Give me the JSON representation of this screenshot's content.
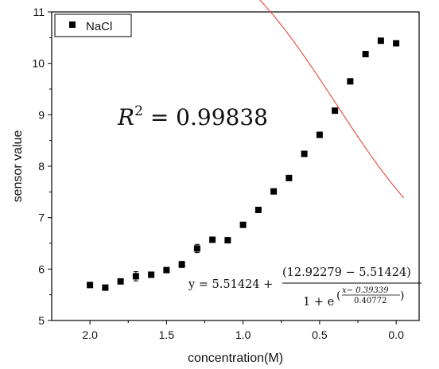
{
  "chart_data": {
    "type": "scatter",
    "xlabel": "concentration(M)",
    "ylabel": "sensor value",
    "xlim": [
      2.25,
      -0.15
    ],
    "ylim": [
      5,
      11
    ],
    "x_reversed": true,
    "xticks": [
      "2.0",
      "1.5",
      "1.0",
      "0.5",
      "0.0"
    ],
    "xtick_values": [
      2.0,
      1.5,
      1.0,
      0.5,
      0.0
    ],
    "yticks": [
      "5",
      "6",
      "7",
      "8",
      "9",
      "10",
      "11"
    ],
    "ytick_values": [
      5,
      6,
      7,
      8,
      9,
      10,
      11
    ],
    "grid": false,
    "legend_position": "top-left",
    "series": [
      {
        "name": "NaCl",
        "marker": "square",
        "color": "#000000",
        "x": [
          2.0,
          1.9,
          1.8,
          1.7,
          1.6,
          1.5,
          1.4,
          1.3,
          1.2,
          1.1,
          1.0,
          0.9,
          0.8,
          0.7,
          0.6,
          0.5,
          0.4,
          0.3,
          0.2,
          0.1,
          0.0
        ],
        "y": [
          5.69,
          5.64,
          5.76,
          5.86,
          5.89,
          5.98,
          6.09,
          6.4,
          6.57,
          6.56,
          6.86,
          7.15,
          7.51,
          7.77,
          8.24,
          8.61,
          9.08,
          9.65,
          10.18,
          10.44,
          10.39
        ],
        "error": [
          0.02,
          0.02,
          0.03,
          0.09,
          0.05,
          0.03,
          0.06,
          0.08,
          0.03,
          0.03,
          0.03,
          0.03,
          0.03,
          0.03,
          0.03,
          0.03,
          0.03,
          0.03,
          0.03,
          0.03,
          0.03
        ]
      }
    ],
    "fit": {
      "color": "#e8534f",
      "A1": 5.51424,
      "A2": 12.92279,
      "x0": 0.39339,
      "dx": 0.40772,
      "range": [
        2.0,
        -0.05
      ]
    },
    "r2_label": {
      "base": "R",
      "exp": "2",
      "rest": " = 0.99838"
    },
    "equation": {
      "lhs": "y = 5.51424 + ",
      "numerator": "(12.92279 − 5.51424)",
      "denominator": "1 + e",
      "exp_numerator": "x− 0.39339",
      "exp_denominator": "0.40772"
    }
  }
}
